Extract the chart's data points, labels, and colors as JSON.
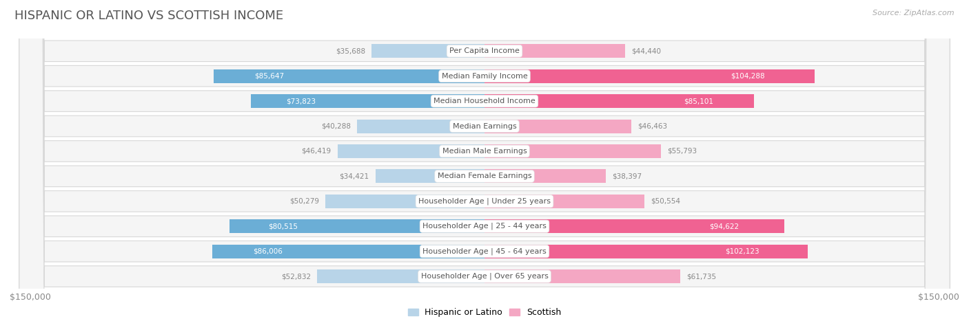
{
  "title": "HISPANIC OR LATINO VS SCOTTISH INCOME",
  "source": "Source: ZipAtlas.com",
  "categories": [
    "Per Capita Income",
    "Median Family Income",
    "Median Household Income",
    "Median Earnings",
    "Median Male Earnings",
    "Median Female Earnings",
    "Householder Age | Under 25 years",
    "Householder Age | 25 - 44 years",
    "Householder Age | 45 - 64 years",
    "Householder Age | Over 65 years"
  ],
  "hispanic_values": [
    35688,
    85647,
    73823,
    40288,
    46419,
    34421,
    50279,
    80515,
    86006,
    52832
  ],
  "scottish_values": [
    44440,
    104288,
    85101,
    46463,
    55793,
    38397,
    50554,
    94622,
    102123,
    61735
  ],
  "hispanic_color_strong": "#6baed6",
  "hispanic_color_light": "#b8d4e8",
  "scottish_color_strong": "#f06292",
  "scottish_color_light": "#f4a7c3",
  "row_bg_color": "#f5f5f5",
  "row_border_color": "#d8d8d8",
  "x_max": 150000,
  "legend_hispanic": "Hispanic or Latino",
  "legend_scottish": "Scottish",
  "xlabel_left": "$150,000",
  "xlabel_right": "$150,000",
  "title_color": "#555555",
  "source_color": "#aaaaaa",
  "value_color_inside": "#ffffff",
  "value_color_outside": "#888888",
  "label_color": "#555555",
  "strong_threshold": 65000
}
